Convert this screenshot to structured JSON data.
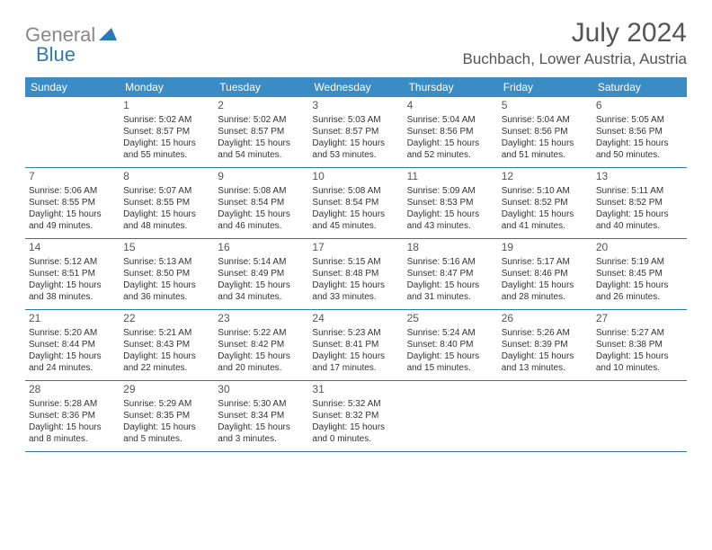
{
  "logo": {
    "gray": "General",
    "blue": "Blue"
  },
  "title": "July 2024",
  "location": "Buchbach, Lower Austria, Austria",
  "colors": {
    "header_bg": "#3b8bc4",
    "header_text": "#ffffff",
    "border": "#2a7ab8",
    "title_text": "#555555",
    "body_text": "#333333",
    "logo_gray": "#888888",
    "logo_blue": "#2a7ab8"
  },
  "day_labels": [
    "Sunday",
    "Monday",
    "Tuesday",
    "Wednesday",
    "Thursday",
    "Friday",
    "Saturday"
  ],
  "weeks": [
    [
      {
        "n": "",
        "sr": "",
        "ss": "",
        "dl1": "",
        "dl2": ""
      },
      {
        "n": "1",
        "sr": "Sunrise: 5:02 AM",
        "ss": "Sunset: 8:57 PM",
        "dl1": "Daylight: 15 hours",
        "dl2": "and 55 minutes."
      },
      {
        "n": "2",
        "sr": "Sunrise: 5:02 AM",
        "ss": "Sunset: 8:57 PM",
        "dl1": "Daylight: 15 hours",
        "dl2": "and 54 minutes."
      },
      {
        "n": "3",
        "sr": "Sunrise: 5:03 AM",
        "ss": "Sunset: 8:57 PM",
        "dl1": "Daylight: 15 hours",
        "dl2": "and 53 minutes."
      },
      {
        "n": "4",
        "sr": "Sunrise: 5:04 AM",
        "ss": "Sunset: 8:56 PM",
        "dl1": "Daylight: 15 hours",
        "dl2": "and 52 minutes."
      },
      {
        "n": "5",
        "sr": "Sunrise: 5:04 AM",
        "ss": "Sunset: 8:56 PM",
        "dl1": "Daylight: 15 hours",
        "dl2": "and 51 minutes."
      },
      {
        "n": "6",
        "sr": "Sunrise: 5:05 AM",
        "ss": "Sunset: 8:56 PM",
        "dl1": "Daylight: 15 hours",
        "dl2": "and 50 minutes."
      }
    ],
    [
      {
        "n": "7",
        "sr": "Sunrise: 5:06 AM",
        "ss": "Sunset: 8:55 PM",
        "dl1": "Daylight: 15 hours",
        "dl2": "and 49 minutes."
      },
      {
        "n": "8",
        "sr": "Sunrise: 5:07 AM",
        "ss": "Sunset: 8:55 PM",
        "dl1": "Daylight: 15 hours",
        "dl2": "and 48 minutes."
      },
      {
        "n": "9",
        "sr": "Sunrise: 5:08 AM",
        "ss": "Sunset: 8:54 PM",
        "dl1": "Daylight: 15 hours",
        "dl2": "and 46 minutes."
      },
      {
        "n": "10",
        "sr": "Sunrise: 5:08 AM",
        "ss": "Sunset: 8:54 PM",
        "dl1": "Daylight: 15 hours",
        "dl2": "and 45 minutes."
      },
      {
        "n": "11",
        "sr": "Sunrise: 5:09 AM",
        "ss": "Sunset: 8:53 PM",
        "dl1": "Daylight: 15 hours",
        "dl2": "and 43 minutes."
      },
      {
        "n": "12",
        "sr": "Sunrise: 5:10 AM",
        "ss": "Sunset: 8:52 PM",
        "dl1": "Daylight: 15 hours",
        "dl2": "and 41 minutes."
      },
      {
        "n": "13",
        "sr": "Sunrise: 5:11 AM",
        "ss": "Sunset: 8:52 PM",
        "dl1": "Daylight: 15 hours",
        "dl2": "and 40 minutes."
      }
    ],
    [
      {
        "n": "14",
        "sr": "Sunrise: 5:12 AM",
        "ss": "Sunset: 8:51 PM",
        "dl1": "Daylight: 15 hours",
        "dl2": "and 38 minutes."
      },
      {
        "n": "15",
        "sr": "Sunrise: 5:13 AM",
        "ss": "Sunset: 8:50 PM",
        "dl1": "Daylight: 15 hours",
        "dl2": "and 36 minutes."
      },
      {
        "n": "16",
        "sr": "Sunrise: 5:14 AM",
        "ss": "Sunset: 8:49 PM",
        "dl1": "Daylight: 15 hours",
        "dl2": "and 34 minutes."
      },
      {
        "n": "17",
        "sr": "Sunrise: 5:15 AM",
        "ss": "Sunset: 8:48 PM",
        "dl1": "Daylight: 15 hours",
        "dl2": "and 33 minutes."
      },
      {
        "n": "18",
        "sr": "Sunrise: 5:16 AM",
        "ss": "Sunset: 8:47 PM",
        "dl1": "Daylight: 15 hours",
        "dl2": "and 31 minutes."
      },
      {
        "n": "19",
        "sr": "Sunrise: 5:17 AM",
        "ss": "Sunset: 8:46 PM",
        "dl1": "Daylight: 15 hours",
        "dl2": "and 28 minutes."
      },
      {
        "n": "20",
        "sr": "Sunrise: 5:19 AM",
        "ss": "Sunset: 8:45 PM",
        "dl1": "Daylight: 15 hours",
        "dl2": "and 26 minutes."
      }
    ],
    [
      {
        "n": "21",
        "sr": "Sunrise: 5:20 AM",
        "ss": "Sunset: 8:44 PM",
        "dl1": "Daylight: 15 hours",
        "dl2": "and 24 minutes."
      },
      {
        "n": "22",
        "sr": "Sunrise: 5:21 AM",
        "ss": "Sunset: 8:43 PM",
        "dl1": "Daylight: 15 hours",
        "dl2": "and 22 minutes."
      },
      {
        "n": "23",
        "sr": "Sunrise: 5:22 AM",
        "ss": "Sunset: 8:42 PM",
        "dl1": "Daylight: 15 hours",
        "dl2": "and 20 minutes."
      },
      {
        "n": "24",
        "sr": "Sunrise: 5:23 AM",
        "ss": "Sunset: 8:41 PM",
        "dl1": "Daylight: 15 hours",
        "dl2": "and 17 minutes."
      },
      {
        "n": "25",
        "sr": "Sunrise: 5:24 AM",
        "ss": "Sunset: 8:40 PM",
        "dl1": "Daylight: 15 hours",
        "dl2": "and 15 minutes."
      },
      {
        "n": "26",
        "sr": "Sunrise: 5:26 AM",
        "ss": "Sunset: 8:39 PM",
        "dl1": "Daylight: 15 hours",
        "dl2": "and 13 minutes."
      },
      {
        "n": "27",
        "sr": "Sunrise: 5:27 AM",
        "ss": "Sunset: 8:38 PM",
        "dl1": "Daylight: 15 hours",
        "dl2": "and 10 minutes."
      }
    ],
    [
      {
        "n": "28",
        "sr": "Sunrise: 5:28 AM",
        "ss": "Sunset: 8:36 PM",
        "dl1": "Daylight: 15 hours",
        "dl2": "and 8 minutes."
      },
      {
        "n": "29",
        "sr": "Sunrise: 5:29 AM",
        "ss": "Sunset: 8:35 PM",
        "dl1": "Daylight: 15 hours",
        "dl2": "and 5 minutes."
      },
      {
        "n": "30",
        "sr": "Sunrise: 5:30 AM",
        "ss": "Sunset: 8:34 PM",
        "dl1": "Daylight: 15 hours",
        "dl2": "and 3 minutes."
      },
      {
        "n": "31",
        "sr": "Sunrise: 5:32 AM",
        "ss": "Sunset: 8:32 PM",
        "dl1": "Daylight: 15 hours",
        "dl2": "and 0 minutes."
      },
      {
        "n": "",
        "sr": "",
        "ss": "",
        "dl1": "",
        "dl2": ""
      },
      {
        "n": "",
        "sr": "",
        "ss": "",
        "dl1": "",
        "dl2": ""
      },
      {
        "n": "",
        "sr": "",
        "ss": "",
        "dl1": "",
        "dl2": ""
      }
    ]
  ]
}
